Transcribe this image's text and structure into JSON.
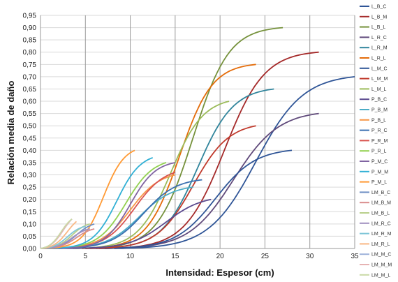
{
  "chart_data": {
    "type": "line",
    "title": "",
    "xlabel": "Intensidad: Espesor (cm)",
    "ylabel": "Relación media de daño",
    "xlim": [
      0,
      35
    ],
    "ylim": [
      0,
      0.95
    ],
    "xticks": [
      "0",
      "5",
      "10",
      "15",
      "20",
      "25",
      "30",
      "35"
    ],
    "yticks": [
      "0,00",
      "0,05",
      "0,10",
      "0,15",
      "0,20",
      "0,25",
      "0,30",
      "0,35",
      "0,40",
      "0,45",
      "0,50",
      "0,55",
      "0,60",
      "0,65",
      "0,70",
      "0,75",
      "0,80",
      "0,85",
      "0,90",
      "0,95"
    ],
    "grid": true,
    "legend_position": "right",
    "series": [
      {
        "name": "L_B_C",
        "color": "#2f5597",
        "max": 0.7,
        "mid": 24.0,
        "k": 0.38,
        "end": 35
      },
      {
        "name": "L_B_M",
        "color": "#a52a2a",
        "max": 0.8,
        "mid": 20.5,
        "k": 0.45,
        "end": 31
      },
      {
        "name": "L_B_L",
        "color": "#76923c",
        "max": 0.9,
        "mid": 17.0,
        "k": 0.5,
        "end": 27
      },
      {
        "name": "L_R_C",
        "color": "#604a7b",
        "max": 0.55,
        "mid": 21.5,
        "k": 0.4,
        "end": 31
      },
      {
        "name": "L_R_M",
        "color": "#31859c",
        "max": 0.65,
        "mid": 17.5,
        "k": 0.5,
        "end": 26
      },
      {
        "name": "L_R_L",
        "color": "#e46c0a",
        "max": 0.75,
        "mid": 15.5,
        "k": 0.55,
        "end": 24
      },
      {
        "name": "L_M_C",
        "color": "#2f5597",
        "max": 0.4,
        "mid": 19.5,
        "k": 0.45,
        "end": 28
      },
      {
        "name": "L_M_M",
        "color": "#c0392b",
        "max": 0.5,
        "mid": 17.0,
        "k": 0.5,
        "end": 24
      },
      {
        "name": "L_M_L",
        "color": "#9bbb59",
        "max": 0.6,
        "mid": 14.5,
        "k": 0.55,
        "end": 21
      },
      {
        "name": "P_B_C",
        "color": "#5b4a8f",
        "max": 0.2,
        "mid": 14.0,
        "k": 0.5,
        "end": 19
      },
      {
        "name": "P_B_M",
        "color": "#4bacc6",
        "max": 0.25,
        "mid": 11.0,
        "k": 0.55,
        "end": 17
      },
      {
        "name": "P_B_L",
        "color": "#f79646",
        "max": 0.3,
        "mid": 10.0,
        "k": 0.6,
        "end": 15
      },
      {
        "name": "P_R_C",
        "color": "#3a6fb0",
        "max": 0.28,
        "mid": 11.5,
        "k": 0.55,
        "end": 18
      },
      {
        "name": "P_R_M",
        "color": "#d9534f",
        "max": 0.31,
        "mid": 10.5,
        "k": 0.6,
        "end": 15
      },
      {
        "name": "P_R_L",
        "color": "#92d050",
        "max": 0.35,
        "mid": 9.5,
        "k": 0.65,
        "end": 14
      },
      {
        "name": "P_M_C",
        "color": "#8064a2",
        "max": 0.35,
        "mid": 10.0,
        "k": 0.7,
        "end": 15
      },
      {
        "name": "P_M_M",
        "color": "#31b0d5",
        "max": 0.37,
        "mid": 8.5,
        "k": 0.75,
        "end": 12.5
      },
      {
        "name": "P_M_L",
        "color": "#ff9933",
        "max": 0.4,
        "mid": 7.0,
        "k": 0.85,
        "end": 10.5
      },
      {
        "name": "LM_B_C",
        "color": "#6f8fc4",
        "max": 0.1,
        "mid": 4.0,
        "k": 1.1,
        "end": 6
      },
      {
        "name": "LM_B_M",
        "color": "#d98c8c",
        "max": 0.08,
        "mid": 4.0,
        "k": 1.1,
        "end": 6
      },
      {
        "name": "LM_B_L",
        "color": "#b8cf8a",
        "max": 0.1,
        "mid": 3.5,
        "k": 1.2,
        "end": 5.5
      },
      {
        "name": "LM_R_C",
        "color": "#a08fc0",
        "max": 0.08,
        "mid": 3.5,
        "k": 1.2,
        "end": 5.5
      },
      {
        "name": "LM_R_M",
        "color": "#7fc6d8",
        "max": 0.09,
        "mid": 3.0,
        "k": 1.3,
        "end": 5
      },
      {
        "name": "LM_R_L",
        "color": "#f9b784",
        "max": 0.11,
        "mid": 3.0,
        "k": 1.3,
        "end": 4
      },
      {
        "name": "LM_M_C",
        "color": "#9fb3da",
        "max": 0.12,
        "mid": 2.5,
        "k": 1.4,
        "end": 3.5
      },
      {
        "name": "LM_M_M",
        "color": "#e6b3b3",
        "max": 0.12,
        "mid": 2.5,
        "k": 1.4,
        "end": 3.5
      },
      {
        "name": "LM_M_L",
        "color": "#c9d9a6",
        "max": 0.12,
        "mid": 2.3,
        "k": 1.5,
        "end": 3.5
      }
    ]
  }
}
